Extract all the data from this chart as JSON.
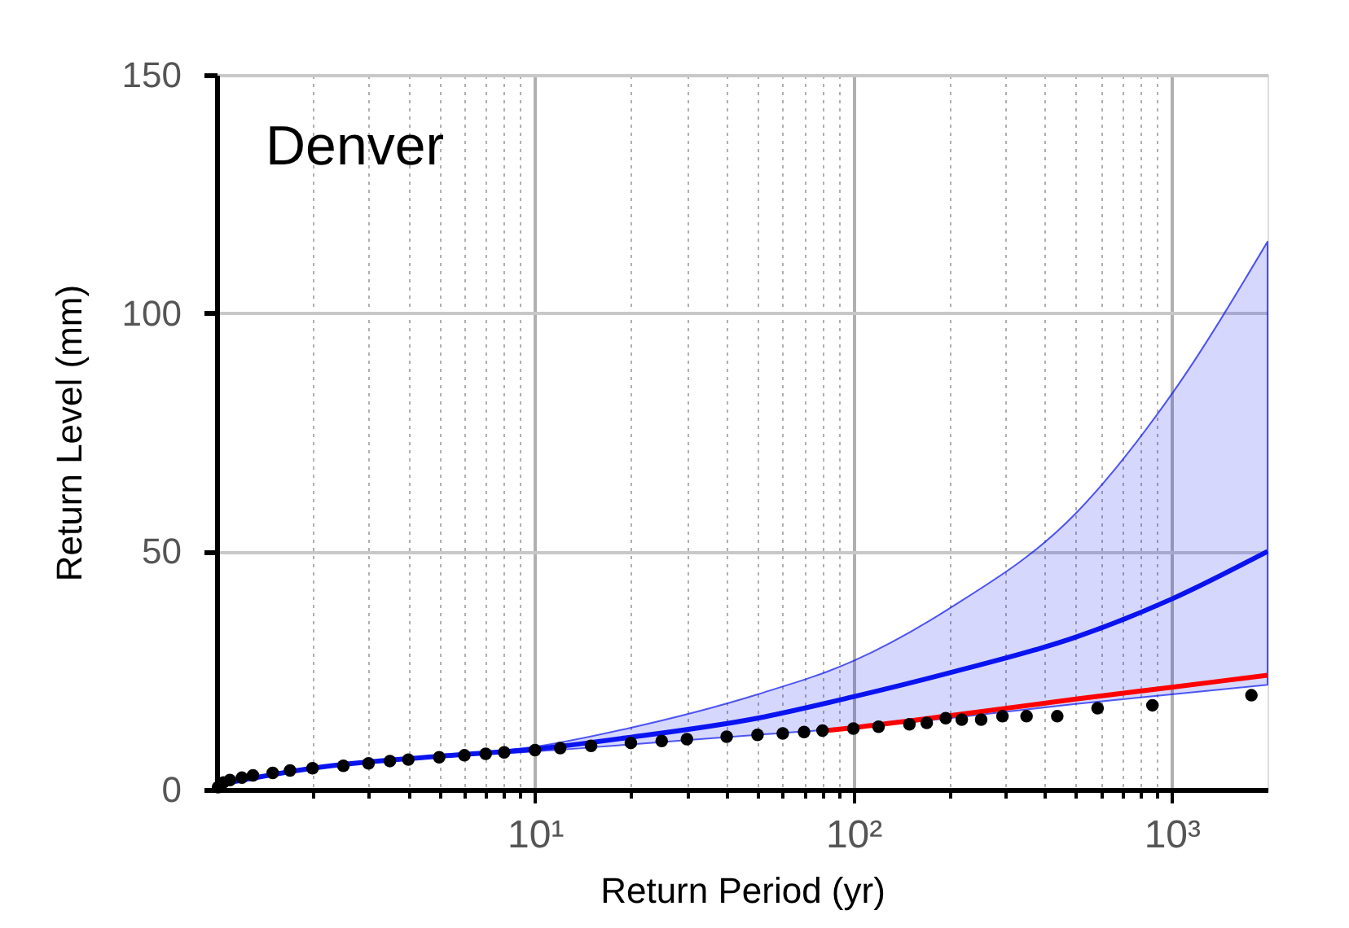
{
  "chart_data": {
    "type": "line",
    "xlabel": "Return Period (yr)",
    "ylabel": "Return Level (mm)",
    "annotations": [
      "Denver"
    ],
    "log": "x",
    "grid": true,
    "xlim": [
      1,
      2000
    ],
    "ylim": [
      0,
      150
    ],
    "xticks": [
      {
        "value": 2,
        "label": null
      },
      {
        "value": 3,
        "label": null
      },
      {
        "value": 4,
        "label": null
      },
      {
        "value": 5,
        "label": null
      },
      {
        "value": 6,
        "label": null
      },
      {
        "value": 7,
        "label": null
      },
      {
        "value": 8,
        "label": null
      },
      {
        "value": 9,
        "label": null
      },
      {
        "value": 10,
        "label": "10¹"
      },
      {
        "value": 20,
        "label": null
      },
      {
        "value": 30,
        "label": null
      },
      {
        "value": 40,
        "label": null
      },
      {
        "value": 50,
        "label": null
      },
      {
        "value": 60,
        "label": null
      },
      {
        "value": 70,
        "label": null
      },
      {
        "value": 80,
        "label": null
      },
      {
        "value": 90,
        "label": null
      },
      {
        "value": 100,
        "label": "10²"
      },
      {
        "value": 200,
        "label": null
      },
      {
        "value": 300,
        "label": null
      },
      {
        "value": 400,
        "label": null
      },
      {
        "value": 500,
        "label": null
      },
      {
        "value": 600,
        "label": null
      },
      {
        "value": 700,
        "label": null
      },
      {
        "value": 800,
        "label": null
      },
      {
        "value": 900,
        "label": null
      },
      {
        "value": 1000,
        "label": "10³"
      }
    ],
    "yticks": [
      0,
      50,
      100,
      150
    ],
    "series": [
      {
        "type": "line",
        "color": "#0a14f0",
        "x": [
          1,
          2,
          5,
          10,
          20,
          50,
          100,
          200,
          500,
          1000,
          2000
        ],
        "values": [
          1,
          4.5,
          7,
          8.5,
          11,
          15,
          19.5,
          24.5,
          32,
          40,
          50
        ],
        "lower": [
          1,
          4.5,
          7,
          8,
          9.5,
          11.5,
          13,
          15,
          18,
          20,
          22
        ],
        "upper": [
          1,
          4.5,
          7,
          9,
          13,
          20,
          27,
          38,
          58,
          83,
          115
        ]
      },
      {
        "type": "line",
        "color": "#ff0000",
        "x": [
          80,
          100,
          200,
          500,
          1000,
          2000
        ],
        "values": [
          12.3,
          13,
          15.5,
          19,
          21.5,
          24
        ]
      },
      {
        "type": "scatter",
        "color": "#000000",
        "marker": "circle",
        "x": [
          1.01,
          1.05,
          1.1,
          1.2,
          1.3,
          1.5,
          1.7,
          2,
          2.5,
          3,
          3.5,
          4,
          5,
          6,
          7,
          8,
          10,
          12,
          15,
          20,
          25,
          30,
          40,
          50,
          60,
          70,
          80,
          100,
          120,
          150,
          170,
          195,
          219,
          252,
          294,
          350,
          437,
          585,
          870,
          1780
        ],
        "values": [
          0.5,
          1.5,
          2,
          2.5,
          3,
          3.5,
          4,
          4.5,
          5,
          5.5,
          6,
          6.3,
          6.8,
          7.2,
          7.5,
          7.8,
          8.3,
          8.7,
          9.2,
          9.8,
          10.2,
          10.6,
          11.1,
          11.5,
          11.8,
          12.1,
          12.4,
          12.8,
          13.2,
          13.7,
          14,
          15,
          14.7,
          14.7,
          15.4,
          15.4,
          15.4,
          17.1,
          17.7,
          19.8
        ]
      }
    ]
  }
}
